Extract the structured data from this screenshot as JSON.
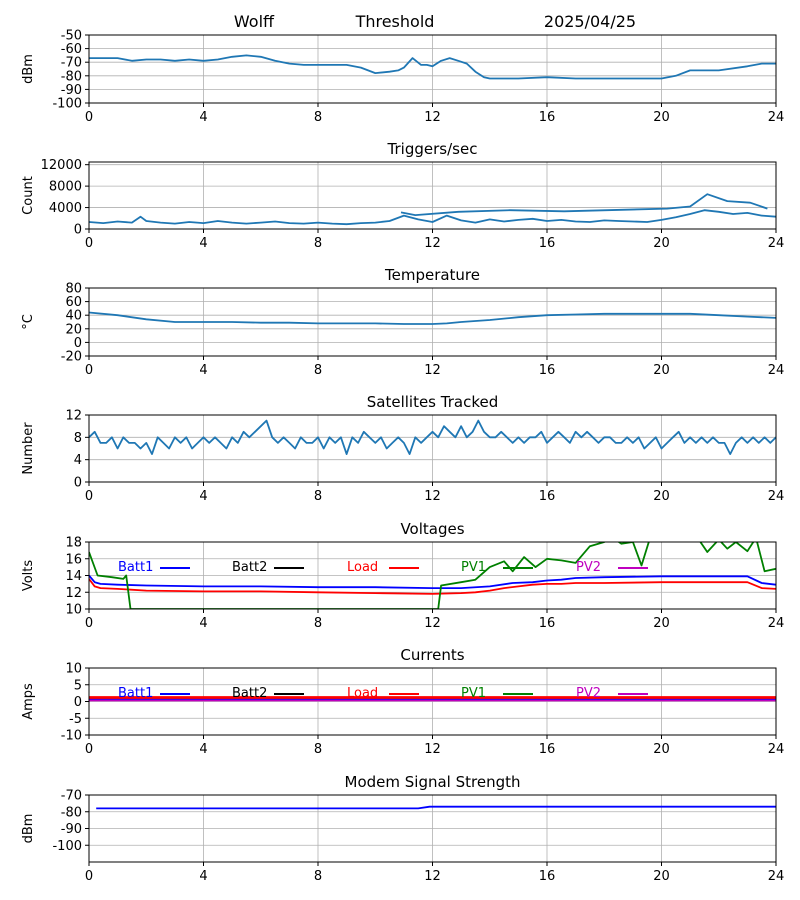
{
  "header": {
    "station": "Wolff",
    "mode": "Threshold",
    "date": "2025/04/25"
  },
  "colors": {
    "series_default": "#1f77b4",
    "grid": "#b0b0b0",
    "batt1": "#0000ff",
    "batt2": "#000000",
    "load": "#ff0000",
    "pv1": "#008000",
    "pv2": "#bf00bf"
  },
  "chart_data": [
    {
      "type": "line",
      "title": "",
      "ylabel": "dBm",
      "ylim": [
        -100,
        -50
      ],
      "yticks": [
        "-50",
        "-60",
        "-70",
        "-80",
        "-90",
        "-100"
      ],
      "ytick_values": [
        -50,
        -60,
        -70,
        -80,
        -90,
        -100
      ],
      "xlim": [
        0,
        24
      ],
      "xticks": [
        "0",
        "4",
        "8",
        "12",
        "16",
        "20",
        "24"
      ],
      "grid": true,
      "series": [
        {
          "x": [
            0,
            0.5,
            1,
            1.5,
            2,
            2.5,
            3,
            3.5,
            4,
            4.5,
            5,
            5.5,
            6,
            6.5,
            7,
            7.5,
            8,
            8.5,
            9,
            9.5,
            10,
            10.5,
            10.8,
            11,
            11.3,
            11.6,
            11.8,
            12,
            12.3,
            12.6,
            12.9,
            13.2,
            13.5,
            13.8,
            14,
            15,
            16,
            17,
            18,
            19,
            20,
            20.5,
            21,
            22,
            23,
            23.5,
            24
          ],
          "y": [
            -67,
            -67,
            -67,
            -69,
            -68,
            -68,
            -69,
            -68,
            -69,
            -68,
            -66,
            -65,
            -66,
            -69,
            -71,
            -72,
            -72,
            -72,
            -72,
            -74,
            -78,
            -77,
            -76,
            -74,
            -67,
            -72,
            -72,
            -73,
            -69,
            -67,
            -69,
            -71,
            -77,
            -81,
            -82,
            -82,
            -81,
            -82,
            -82,
            -82,
            -82,
            -80,
            -76,
            -76,
            -73,
            -71,
            -71
          ]
        }
      ]
    },
    {
      "type": "line",
      "title": "Triggers/sec",
      "ylabel": "Count",
      "ylim": [
        0,
        12500
      ],
      "yticks": [
        "12000",
        "8000",
        "4000",
        "0"
      ],
      "ytick_values": [
        12000,
        8000,
        4000,
        0
      ],
      "xlim": [
        0,
        24
      ],
      "xticks": [
        "0",
        "4",
        "8",
        "12",
        "16",
        "20",
        "24"
      ],
      "grid": true,
      "series": [
        {
          "x": [
            0,
            0.5,
            1,
            1.5,
            1.8,
            2,
            2.5,
            3,
            3.5,
            4,
            4.5,
            5,
            5.5,
            6,
            6.5,
            7,
            7.5,
            8,
            8.5,
            9,
            9.5,
            10,
            10.5,
            11,
            11.5,
            12,
            12.5,
            13,
            13.5,
            14,
            14.5,
            15,
            15.5,
            16,
            16.5,
            17,
            17.5,
            18,
            18.5,
            19,
            19.5,
            20,
            20.5,
            21,
            21.5,
            22,
            22.5,
            23,
            23.5,
            24
          ],
          "y": [
            1300,
            1100,
            1400,
            1200,
            2300,
            1500,
            1200,
            1000,
            1300,
            1100,
            1500,
            1200,
            1000,
            1200,
            1400,
            1100,
            1000,
            1200,
            1000,
            900,
            1100,
            1200,
            1500,
            2500,
            1800,
            1300,
            2500,
            1600,
            1200,
            1800,
            1400,
            1700,
            1900,
            1500,
            1700,
            1400,
            1300,
            1600,
            1500,
            1400,
            1300,
            1700,
            2200,
            2800,
            3500,
            3200,
            2800,
            3000,
            2500,
            2300
          ]
        },
        {
          "x": [
            10.9,
            11.4,
            12.9,
            14.7,
            16.6,
            20.2,
            21.0,
            21.6,
            22.3,
            23.1,
            23.7
          ],
          "y": [
            3100,
            2600,
            3200,
            3500,
            3300,
            3800,
            4200,
            6500,
            5200,
            4900,
            3800
          ]
        }
      ]
    },
    {
      "type": "line",
      "title": "Temperature",
      "ylabel": "°C",
      "ylim": [
        -20,
        80
      ],
      "yticks": [
        "80",
        "60",
        "40",
        "20",
        "0",
        "-20"
      ],
      "ytick_values": [
        80,
        60,
        40,
        20,
        0,
        -20
      ],
      "xlim": [
        0,
        24
      ],
      "xticks": [
        "0",
        "4",
        "8",
        "12",
        "16",
        "20",
        "24"
      ],
      "grid": true,
      "series": [
        {
          "x": [
            0,
            1,
            2,
            3,
            4,
            5,
            6,
            7,
            8,
            9,
            10,
            11,
            12,
            12.5,
            13,
            14,
            15,
            16,
            17,
            18,
            19,
            20,
            21,
            22,
            23,
            24
          ],
          "y": [
            44,
            40,
            34,
            30,
            30,
            30,
            29,
            29,
            28,
            28,
            28,
            27,
            27,
            28,
            30,
            33,
            37,
            40,
            41,
            42,
            42,
            42,
            42,
            40,
            38,
            36
          ]
        }
      ]
    },
    {
      "type": "line",
      "title": "Satellites Tracked",
      "ylabel": "Number",
      "ylim": [
        0,
        12
      ],
      "yticks": [
        "12",
        "8",
        "4",
        "0"
      ],
      "ytick_values": [
        12,
        8,
        4,
        0
      ],
      "xlim": [
        0,
        24
      ],
      "xticks": [
        "0",
        "4",
        "8",
        "12",
        "16",
        "20",
        "24"
      ],
      "grid": true,
      "series": [
        {
          "x": [
            0,
            0.2,
            0.4,
            0.6,
            0.8,
            1,
            1.2,
            1.4,
            1.6,
            1.8,
            2,
            2.2,
            2.4,
            2.6,
            2.8,
            3,
            3.2,
            3.4,
            3.6,
            3.8,
            4,
            4.2,
            4.4,
            4.6,
            4.8,
            5,
            5.2,
            5.4,
            5.6,
            5.8,
            6,
            6.2,
            6.4,
            6.6,
            6.8,
            7,
            7.2,
            7.4,
            7.6,
            7.8,
            8,
            8.2,
            8.4,
            8.6,
            8.8,
            9,
            9.2,
            9.4,
            9.6,
            9.8,
            10,
            10.2,
            10.4,
            10.6,
            10.8,
            11,
            11.2,
            11.4,
            11.6,
            11.8,
            12,
            12.2,
            12.4,
            12.6,
            12.8,
            13,
            13.2,
            13.4,
            13.6,
            13.8,
            14,
            14.2,
            14.4,
            14.6,
            14.8,
            15,
            15.2,
            15.4,
            15.6,
            15.8,
            16,
            16.2,
            16.4,
            16.6,
            16.8,
            17,
            17.2,
            17.4,
            17.6,
            17.8,
            18,
            18.2,
            18.4,
            18.6,
            18.8,
            19,
            19.2,
            19.4,
            19.6,
            19.8,
            20,
            20.2,
            20.4,
            20.6,
            20.8,
            21,
            21.2,
            21.4,
            21.6,
            21.8,
            22,
            22.2,
            22.4,
            22.6,
            22.8,
            23,
            23.2,
            23.4,
            23.6,
            23.8,
            24
          ],
          "y": [
            8,
            9,
            7,
            7,
            8,
            6,
            8,
            7,
            7,
            6,
            7,
            5,
            8,
            7,
            6,
            8,
            7,
            8,
            6,
            7,
            8,
            7,
            8,
            7,
            6,
            8,
            7,
            9,
            8,
            9,
            10,
            11,
            8,
            7,
            8,
            7,
            6,
            8,
            7,
            7,
            8,
            6,
            8,
            7,
            8,
            5,
            8,
            7,
            9,
            8,
            7,
            8,
            6,
            7,
            8,
            7,
            5,
            8,
            7,
            8,
            9,
            8,
            10,
            9,
            8,
            10,
            8,
            9,
            11,
            9,
            8,
            8,
            9,
            8,
            7,
            8,
            7,
            8,
            8,
            9,
            7,
            8,
            9,
            8,
            7,
            9,
            8,
            9,
            8,
            7,
            8,
            8,
            7,
            7,
            8,
            7,
            8,
            6,
            7,
            8,
            6,
            7,
            8,
            9,
            7,
            8,
            7,
            8,
            7,
            8,
            7,
            7,
            5,
            7,
            8,
            7,
            8,
            7,
            8,
            7,
            8
          ]
        }
      ]
    },
    {
      "type": "line",
      "title": "Voltages",
      "ylabel": "Volts",
      "ylim": [
        10,
        18
      ],
      "yticks": [
        "18",
        "16",
        "14",
        "12",
        "10"
      ],
      "ytick_values": [
        18,
        16,
        14,
        12,
        10
      ],
      "xlim": [
        0,
        24
      ],
      "xticks": [
        "0",
        "4",
        "8",
        "12",
        "16",
        "20",
        "24"
      ],
      "grid": true,
      "legend": [
        {
          "label": "Batt1",
          "color_key": "batt1"
        },
        {
          "label": "Batt2",
          "color_key": "batt2"
        },
        {
          "label": "Load",
          "color_key": "load"
        },
        {
          "label": "PV1",
          "color_key": "pv1"
        },
        {
          "label": "PV2",
          "color_key": "pv2"
        }
      ],
      "legend_placement": "top",
      "series": [
        {
          "name": "Batt1",
          "color_key": "batt1",
          "x": [
            0,
            0.2,
            0.4,
            1,
            2,
            4,
            6,
            8,
            10,
            12,
            13,
            14,
            14.8,
            15.5,
            16,
            16.5,
            17,
            18,
            20,
            22,
            23,
            23.5,
            24
          ],
          "y": [
            14,
            13.2,
            13,
            12.9,
            12.8,
            12.7,
            12.7,
            12.6,
            12.6,
            12.5,
            12.5,
            12.7,
            13.1,
            13.2,
            13.4,
            13.5,
            13.7,
            13.8,
            13.9,
            13.9,
            13.9,
            13.1,
            12.9
          ]
        },
        {
          "name": "Load",
          "color_key": "load",
          "x": [
            0,
            0.2,
            0.4,
            1,
            2,
            4,
            6,
            8,
            10,
            12,
            13,
            13.5,
            14,
            14.5,
            15,
            15.5,
            16,
            16.5,
            17,
            18,
            20,
            22,
            23,
            23.5,
            24
          ],
          "y": [
            13.6,
            12.7,
            12.5,
            12.4,
            12.2,
            12.1,
            12.1,
            12.0,
            11.9,
            11.8,
            11.9,
            12.0,
            12.2,
            12.5,
            12.7,
            12.9,
            13.0,
            13.0,
            13.1,
            13.1,
            13.2,
            13.2,
            13.2,
            12.5,
            12.4
          ]
        },
        {
          "name": "PV1",
          "color_key": "pv1",
          "x": [
            0,
            0.3,
            0.8,
            1.2,
            1.3,
            1.45,
            12.2,
            12.3,
            13,
            13.5,
            14,
            14.5,
            14.8,
            15.2,
            15.6,
            16,
            16.5,
            17,
            17.5,
            18,
            18.3,
            18.6,
            19,
            19.3,
            19.6,
            20,
            20.5,
            21,
            21.3,
            21.6,
            22,
            22.3,
            22.6,
            23,
            23.3,
            23.6,
            24
          ],
          "y": [
            16.8,
            14,
            13.8,
            13.6,
            14,
            10,
            10,
            12.8,
            13.2,
            13.5,
            15,
            15.7,
            14.5,
            16.2,
            15,
            16,
            15.8,
            15.5,
            17.5,
            18,
            18.5,
            17.8,
            18,
            15.2,
            18.5,
            18.5,
            18.5,
            18.5,
            18.3,
            16.8,
            18.3,
            17.2,
            18,
            16.9,
            18.5,
            14.5,
            14.8
          ]
        }
      ]
    },
    {
      "type": "line",
      "title": "Currents",
      "ylabel": "Amps",
      "ylim": [
        -10,
        10
      ],
      "yticks": [
        "10",
        "5",
        "0",
        "-5",
        "-10"
      ],
      "ytick_values": [
        10,
        5,
        0,
        -5,
        -10
      ],
      "xlim": [
        0,
        24
      ],
      "xticks": [
        "0",
        "4",
        "8",
        "12",
        "16",
        "20",
        "24"
      ],
      "grid": true,
      "legend": [
        {
          "label": "Batt1",
          "color_key": "batt1"
        },
        {
          "label": "Batt2",
          "color_key": "batt2"
        },
        {
          "label": "Load",
          "color_key": "load"
        },
        {
          "label": "PV1",
          "color_key": "pv1"
        },
        {
          "label": "PV2",
          "color_key": "pv2"
        }
      ],
      "legend_placement": "top",
      "series": [
        {
          "name": "Load",
          "color_key": "load",
          "x": [
            0,
            24
          ],
          "y": [
            1,
            1
          ]
        },
        {
          "name": "Batt1",
          "color_key": "batt1",
          "x": [
            0,
            24
          ],
          "y": [
            0.5,
            0.5
          ]
        },
        {
          "name": "PV2",
          "color_key": "pv2",
          "x": [
            0,
            24
          ],
          "y": [
            0.3,
            0.3
          ]
        }
      ]
    },
    {
      "type": "line",
      "title": "Modem Signal Strength",
      "ylabel": "dBm",
      "ylim": [
        -110,
        -70
      ],
      "yticks": [
        "-70",
        "-80",
        "-90",
        "-100"
      ],
      "ytick_values": [
        -70,
        -80,
        -90,
        -100
      ],
      "xlim": [
        0,
        24
      ],
      "xticks": [
        "0",
        "4",
        "8",
        "12",
        "16",
        "20",
        "24"
      ],
      "grid": true,
      "series": [
        {
          "color_key": "batt1",
          "x": [
            0.25,
            11.5,
            11.9,
            24
          ],
          "y": [
            -78,
            -78,
            -77,
            -77
          ]
        }
      ]
    }
  ]
}
